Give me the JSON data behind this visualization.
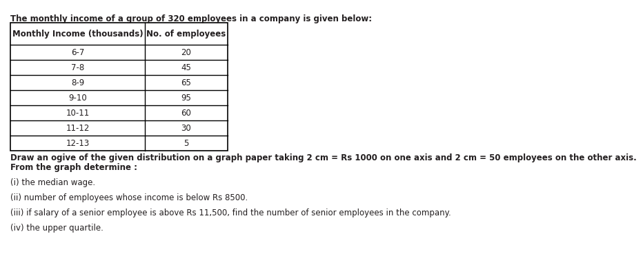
{
  "intro_text": "The monthly income of a group of 320 employees in a company is given below:",
  "col1_header": "Monthly Income (thousands)",
  "col2_header": "No. of employees",
  "rows": [
    [
      "6-7",
      "20"
    ],
    [
      "7-8",
      "45"
    ],
    [
      "8-9",
      "65"
    ],
    [
      "9-10",
      "95"
    ],
    [
      "10-11",
      "60"
    ],
    [
      "11-12",
      "30"
    ],
    [
      "12-13",
      "5"
    ]
  ],
  "para1_line1": "Draw an ogive of the given distribution on a graph paper taking 2 cm = Rs 1000 on one axis and 2 cm = 50 employees on the other axis.",
  "para1_line2": "From the graph determine :",
  "para2": "(i) the median wage.",
  "para3": "(ii) number of employees whose income is below Rs 8500.",
  "para4": "(iii) if salary of a senior employee is above Rs 11,500, find the number of senior employees in the company.",
  "para5": "(iv) the upper quartile.",
  "bg_color": "#ffffff",
  "text_color": "#231f20",
  "font_size": 8.5,
  "bold_font_size": 9.0
}
